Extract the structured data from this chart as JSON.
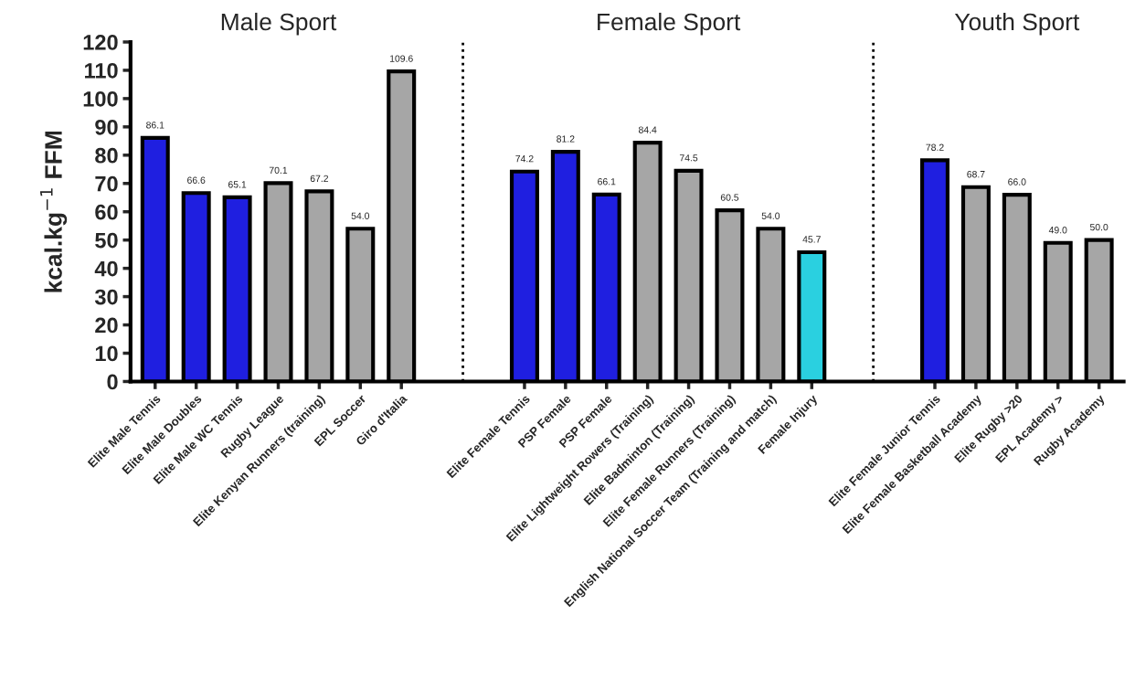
{
  "chart_data": {
    "type": "bar",
    "ylabel": "kcal.kg$^{−1}$ FFM",
    "categories": [
      "Elite Male Tennis",
      "Elite Male Doubles",
      "Elite Male WC Tennis",
      "Rugby League",
      "Elite Kenyan Runners (training)",
      "EPL Soccer",
      "Giro d'Italia",
      null,
      null,
      "Elite Female Tennis",
      "PSP Female",
      "PSP Female",
      "Elite Lightweight Rowers (Training)",
      "Elite Badminton (Training)",
      "Elite Female Runners (Training)",
      "English National Soccer Team (Training and match)",
      "Female Injury",
      null,
      null,
      "Elite Female Junior Tennis",
      "Elite Female Basketball Academy",
      "Elite Rugby >20",
      "EPL Academy >",
      "Rugby Academy"
    ],
    "values": [
      86.1,
      66.6,
      65.1,
      70.1,
      67.2,
      54.0,
      109.6,
      null,
      null,
      74.2,
      81.2,
      66.1,
      84.4,
      74.5,
      60.5,
      54.0,
      45.7,
      null,
      null,
      78.2,
      68.7,
      66.0,
      49.0,
      50.0
    ],
    "value_labels": [
      "86.1",
      "66.6",
      "65.1",
      "70.1",
      "67.2",
      "54.0",
      "109.6",
      null,
      null,
      "74.2",
      "81.2",
      "66.1",
      "84.4",
      "74.5",
      "60.5",
      "54.0",
      "45.7",
      null,
      null,
      "78.2",
      "68.7",
      "66.0",
      "49.0",
      "50.0"
    ],
    "colors": [
      "#1f1fe0",
      "#1f1fe0",
      "#1f1fe0",
      "#a6a6a6",
      "#a6a6a6",
      "#a6a6a6",
      "#a6a6a6",
      null,
      null,
      "#1f1fe0",
      "#1f1fe0",
      "#1f1fe0",
      "#a6a6a6",
      "#a6a6a6",
      "#a6a6a6",
      "#a6a6a6",
      "#2ad0e0",
      null,
      null,
      "#1f1fe0",
      "#a6a6a6",
      "#a6a6a6",
      "#a6a6a6",
      "#a6a6a6"
    ],
    "ylim": [
      0,
      120
    ],
    "yticks": [
      0,
      10,
      20,
      30,
      40,
      50,
      60,
      70,
      80,
      90,
      100,
      110,
      120
    ],
    "ref_lines": [
      {
        "axis": "x",
        "value": null,
        "line_style": "dotted",
        "color": "#000000"
      },
      {
        "axis": "x",
        "value": null,
        "line_style": "dotted",
        "color": "#000000"
      }
    ],
    "annotations": [
      "Male Sport",
      "Female Sport",
      "Youth Sport"
    ],
    "legend": false
  }
}
